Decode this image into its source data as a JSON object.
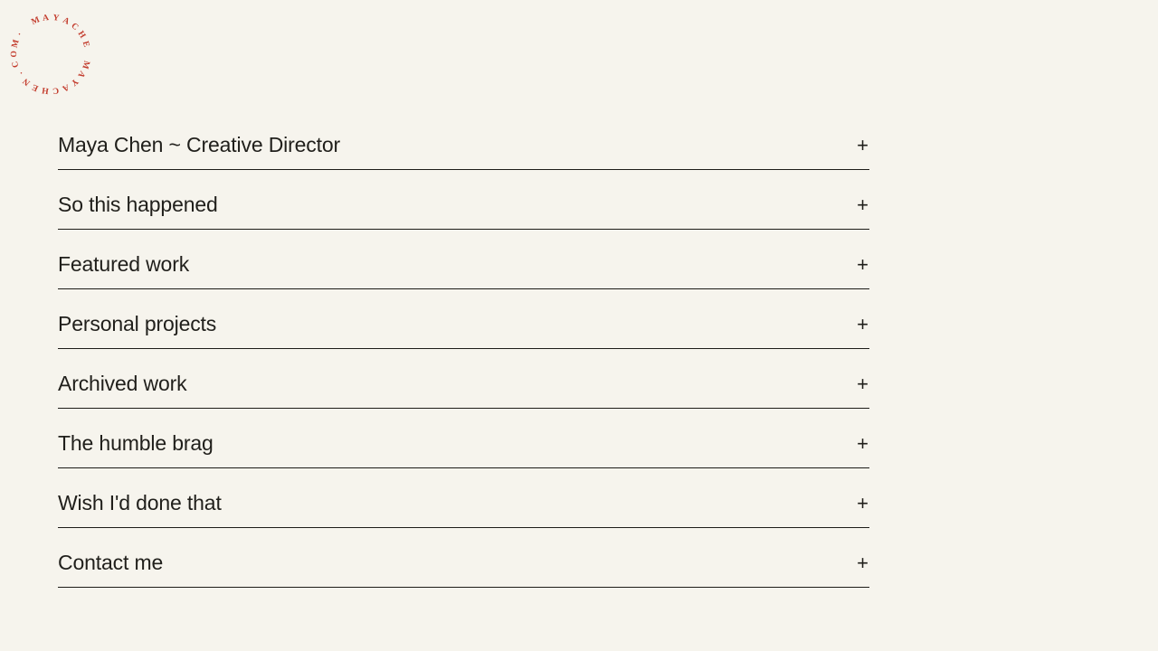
{
  "page": {
    "background_color": "#f6f4ed",
    "text_color": "#201f1b",
    "divider_color": "#1d1c18"
  },
  "logo": {
    "text": "· MAYACHE MAYACHEN.COM",
    "color": "#c33d2e"
  },
  "accordion": {
    "plus_symbol": "+",
    "items": [
      {
        "label": "Maya Chen ~ Creative Director"
      },
      {
        "label": "So this happened"
      },
      {
        "label": "Featured work"
      },
      {
        "label": "Personal projects"
      },
      {
        "label": "Archived work"
      },
      {
        "label": "The humble brag"
      },
      {
        "label": "Wish I'd done that"
      },
      {
        "label": "Contact me"
      }
    ]
  }
}
